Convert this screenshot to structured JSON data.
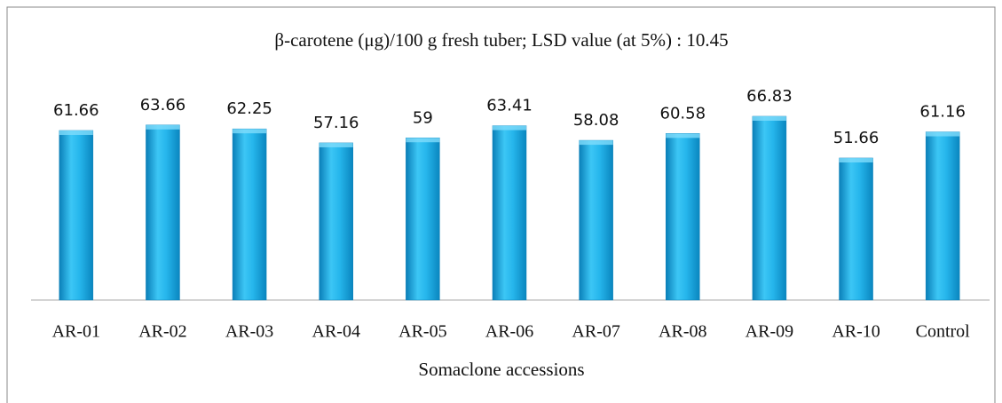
{
  "chart_data": {
    "type": "bar",
    "title": "β-carotene (μg)/100 g fresh tuber; LSD value (at  5%) : 10.45",
    "x_label": "Somaclone accessions",
    "categories": [
      "AR-01",
      "AR-02",
      "AR-03",
      "AR-04",
      "AR-05",
      "AR-06",
      "AR-07",
      "AR-08",
      "AR-09",
      "AR-10",
      "Control"
    ],
    "values": [
      61.66,
      63.66,
      62.25,
      57.16,
      59,
      63.41,
      58.08,
      60.58,
      66.83,
      51.66,
      61.16
    ],
    "color": "#1ab0e8"
  }
}
